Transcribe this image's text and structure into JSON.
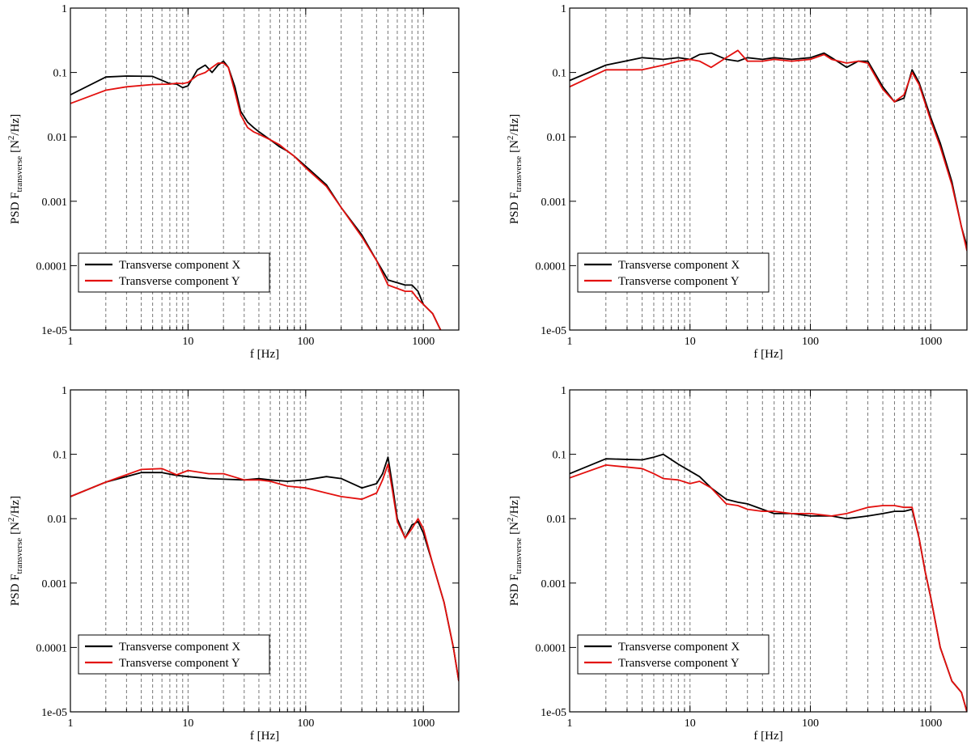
{
  "colors": {
    "series_x": "#000000",
    "series_y": "#e3100e"
  },
  "chart_data": [
    {
      "type": "line",
      "xlabel": "f [Hz]",
      "ylabel": "PSD F",
      "ylabel_sub": "transverse",
      "ylabel_unit": "[N",
      "ylabel_unit_sup": "2",
      "ylabel_unit_end": "/Hz]",
      "xscale": "log",
      "yscale": "log",
      "xlim": [
        1,
        2000
      ],
      "ylim": [
        1e-05,
        1
      ],
      "xticks": [
        "1",
        "10",
        "100",
        "1000"
      ],
      "yticks": [
        "1e-05",
        "0.0001",
        "0.001",
        "0.01",
        "0.1",
        "1"
      ],
      "grid": "vertical dashed",
      "legend": "bottom-left",
      "series": [
        {
          "name": "Transverse component X",
          "x": [
            1,
            2,
            3,
            5,
            7,
            8,
            9,
            10,
            12,
            14,
            16,
            18,
            20,
            22,
            25,
            28,
            32,
            36,
            40,
            50,
            60,
            70,
            80,
            100,
            150,
            200,
            300,
            400,
            500,
            700,
            800,
            900,
            1000,
            1200,
            1400
          ],
          "y": [
            0.045,
            0.085,
            0.088,
            0.087,
            0.067,
            0.066,
            0.058,
            0.062,
            0.11,
            0.13,
            0.1,
            0.13,
            0.15,
            0.12,
            0.06,
            0.025,
            0.017,
            0.014,
            0.012,
            0.009,
            0.007,
            0.006,
            0.005,
            0.0035,
            0.0018,
            0.0008,
            0.0003,
            0.00012,
            6e-05,
            5e-05,
            5e-05,
            4e-05,
            2.5e-05,
            1.8e-05,
            1e-05
          ]
        },
        {
          "name": "Transverse component Y",
          "x": [
            1,
            2,
            3,
            5,
            7,
            8,
            9,
            10,
            12,
            14,
            16,
            18,
            20,
            22,
            25,
            28,
            32,
            36,
            40,
            50,
            60,
            70,
            80,
            100,
            150,
            200,
            300,
            400,
            500,
            700,
            800,
            900,
            1000,
            1200,
            1400
          ],
          "y": [
            0.033,
            0.053,
            0.06,
            0.065,
            0.066,
            0.068,
            0.067,
            0.07,
            0.09,
            0.1,
            0.12,
            0.14,
            0.14,
            0.12,
            0.05,
            0.022,
            0.014,
            0.012,
            0.011,
            0.009,
            0.0075,
            0.006,
            0.005,
            0.0033,
            0.0017,
            0.0008,
            0.00028,
            0.00012,
            5e-05,
            4e-05,
            4e-05,
            3e-05,
            2.5e-05,
            1.8e-05,
            1e-05
          ]
        }
      ]
    },
    {
      "type": "line",
      "xlabel": "f [Hz]",
      "ylabel": "PSD F",
      "ylabel_sub": "transverse",
      "ylabel_unit": "[N",
      "ylabel_unit_sup": "2",
      "ylabel_unit_end": "/Hz]",
      "xscale": "log",
      "yscale": "log",
      "xlim": [
        1,
        2000
      ],
      "ylim": [
        1e-05,
        1
      ],
      "xticks": [
        "1",
        "10",
        "100",
        "1000"
      ],
      "yticks": [
        "1e-05",
        "0.0001",
        "0.001",
        "0.01",
        "0.1",
        "1"
      ],
      "grid": "vertical dashed",
      "legend": "bottom-left",
      "series": [
        {
          "name": "Transverse component X",
          "x": [
            1,
            2,
            4,
            6,
            8,
            10,
            12,
            15,
            20,
            25,
            30,
            40,
            50,
            70,
            100,
            130,
            150,
            200,
            250,
            300,
            400,
            500,
            600,
            700,
            800,
            1000,
            1200,
            1500,
            1800,
            2000
          ],
          "y": [
            0.075,
            0.13,
            0.17,
            0.16,
            0.17,
            0.16,
            0.19,
            0.2,
            0.16,
            0.15,
            0.17,
            0.16,
            0.17,
            0.16,
            0.17,
            0.2,
            0.17,
            0.12,
            0.15,
            0.15,
            0.06,
            0.035,
            0.04,
            0.11,
            0.07,
            0.02,
            0.008,
            0.002,
            0.0004,
            0.0002
          ]
        },
        {
          "name": "Transverse component Y",
          "x": [
            1,
            2,
            4,
            6,
            8,
            10,
            12,
            15,
            20,
            25,
            30,
            40,
            50,
            70,
            100,
            130,
            150,
            200,
            250,
            300,
            400,
            500,
            600,
            700,
            800,
            1000,
            1200,
            1500,
            1800,
            2000
          ],
          "y": [
            0.06,
            0.11,
            0.11,
            0.13,
            0.15,
            0.16,
            0.15,
            0.12,
            0.17,
            0.22,
            0.15,
            0.15,
            0.16,
            0.15,
            0.16,
            0.19,
            0.16,
            0.14,
            0.15,
            0.14,
            0.055,
            0.035,
            0.045,
            0.1,
            0.065,
            0.018,
            0.007,
            0.0018,
            0.0004,
            0.00017
          ]
        }
      ]
    },
    {
      "type": "line",
      "xlabel": "f [Hz]",
      "ylabel": "PSD F",
      "ylabel_sub": "transverse",
      "ylabel_unit": "[N",
      "ylabel_unit_sup": "2",
      "ylabel_unit_end": "/Hz]",
      "xscale": "log",
      "yscale": "log",
      "xlim": [
        1,
        2000
      ],
      "ylim": [
        1e-05,
        1
      ],
      "xticks": [
        "1",
        "10",
        "100",
        "1000"
      ],
      "yticks": [
        "1e-05",
        "0.0001",
        "0.001",
        "0.01",
        "0.1",
        "1"
      ],
      "grid": "vertical dashed",
      "legend": "bottom-left",
      "series": [
        {
          "name": "Transverse component X",
          "x": [
            1,
            2,
            4,
            6,
            8,
            10,
            15,
            20,
            30,
            40,
            50,
            70,
            100,
            150,
            200,
            300,
            400,
            450,
            500,
            550,
            600,
            700,
            800,
            900,
            1000,
            1200,
            1500,
            1800,
            2000
          ],
          "y": [
            0.022,
            0.037,
            0.052,
            0.052,
            0.047,
            0.045,
            0.042,
            0.041,
            0.04,
            0.042,
            0.04,
            0.038,
            0.04,
            0.045,
            0.042,
            0.03,
            0.035,
            0.05,
            0.09,
            0.03,
            0.01,
            0.005,
            0.008,
            0.009,
            0.006,
            0.002,
            0.0005,
            0.0001,
            3e-05
          ]
        },
        {
          "name": "Transverse component Y",
          "x": [
            1,
            2,
            4,
            6,
            8,
            10,
            15,
            20,
            30,
            40,
            50,
            70,
            100,
            150,
            200,
            300,
            400,
            450,
            500,
            550,
            600,
            700,
            800,
            900,
            1000,
            1200,
            1500,
            1800,
            2000
          ],
          "y": [
            0.022,
            0.037,
            0.058,
            0.06,
            0.048,
            0.056,
            0.05,
            0.05,
            0.04,
            0.04,
            0.038,
            0.032,
            0.03,
            0.025,
            0.022,
            0.02,
            0.025,
            0.04,
            0.07,
            0.025,
            0.009,
            0.005,
            0.007,
            0.01,
            0.007,
            0.002,
            0.0005,
            0.0001,
            3e-05
          ]
        }
      ]
    },
    {
      "type": "line",
      "xlabel": "f [Hz]",
      "ylabel": "PSD F",
      "ylabel_sub": "transverse",
      "ylabel_unit": "[N",
      "ylabel_unit_sup": "2",
      "ylabel_unit_end": "/Hz]",
      "xscale": "log",
      "yscale": "log",
      "xlim": [
        1,
        2000
      ],
      "ylim": [
        1e-05,
        1
      ],
      "xticks": [
        "1",
        "10",
        "100",
        "1000"
      ],
      "yticks": [
        "1e-05",
        "0.0001",
        "0.001",
        "0.01",
        "0.1",
        "1"
      ],
      "grid": "vertical dashed",
      "legend": "bottom-left",
      "series": [
        {
          "name": "Transverse component X",
          "x": [
            1,
            2,
            4,
            5,
            6,
            8,
            10,
            12,
            15,
            20,
            25,
            30,
            40,
            50,
            70,
            100,
            150,
            200,
            300,
            400,
            500,
            600,
            700,
            800,
            900,
            1000,
            1200,
            1500,
            1800,
            2000
          ],
          "y": [
            0.05,
            0.085,
            0.082,
            0.09,
            0.1,
            0.07,
            0.055,
            0.045,
            0.03,
            0.02,
            0.018,
            0.017,
            0.014,
            0.012,
            0.012,
            0.011,
            0.011,
            0.01,
            0.011,
            0.012,
            0.013,
            0.013,
            0.014,
            0.005,
            0.0015,
            0.0006,
            0.0001,
            3e-05,
            2e-05,
            1e-05
          ]
        },
        {
          "name": "Transverse component Y",
          "x": [
            1,
            2,
            4,
            5,
            6,
            8,
            10,
            12,
            15,
            20,
            25,
            30,
            40,
            50,
            70,
            100,
            150,
            200,
            300,
            400,
            500,
            600,
            700,
            800,
            900,
            1000,
            1200,
            1500,
            1800,
            2000
          ],
          "y": [
            0.043,
            0.068,
            0.06,
            0.05,
            0.042,
            0.04,
            0.035,
            0.038,
            0.03,
            0.017,
            0.016,
            0.014,
            0.013,
            0.013,
            0.012,
            0.012,
            0.011,
            0.012,
            0.015,
            0.016,
            0.016,
            0.015,
            0.015,
            0.005,
            0.0015,
            0.0006,
            0.0001,
            3e-05,
            2e-05,
            1e-05
          ]
        }
      ]
    }
  ]
}
